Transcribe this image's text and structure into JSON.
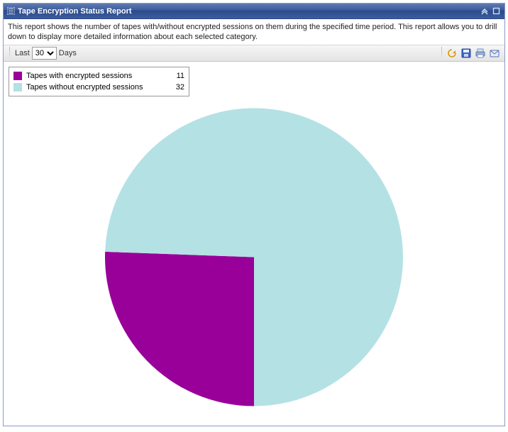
{
  "panel": {
    "title": "Tape Encryption Status Report",
    "description": "This report shows the number of tapes with/without encrypted sessions on them during the specified time period. This report allows you to drill down to display more detailed information about each selected category."
  },
  "toolbar": {
    "last_label": "Last",
    "days_label": "Days",
    "days_value": "30",
    "icons": {
      "refresh": "refresh-icon",
      "save": "save-icon",
      "print": "print-icon",
      "email": "email-icon"
    }
  },
  "chart": {
    "type": "pie",
    "radius": 210,
    "background_color": "#ffffff",
    "series": [
      {
        "label": "Tapes with encrypted sessions",
        "value": 11,
        "color": "#990099"
      },
      {
        "label": "Tapes without encrypted sessions",
        "value": 32,
        "color": "#b4e1e4"
      }
    ],
    "start_angle_deg": 90
  },
  "colors": {
    "title_gradient_top": "#5f7bb4",
    "title_gradient_bottom": "#3d5c9c",
    "panel_border": "#8a9cc2"
  }
}
